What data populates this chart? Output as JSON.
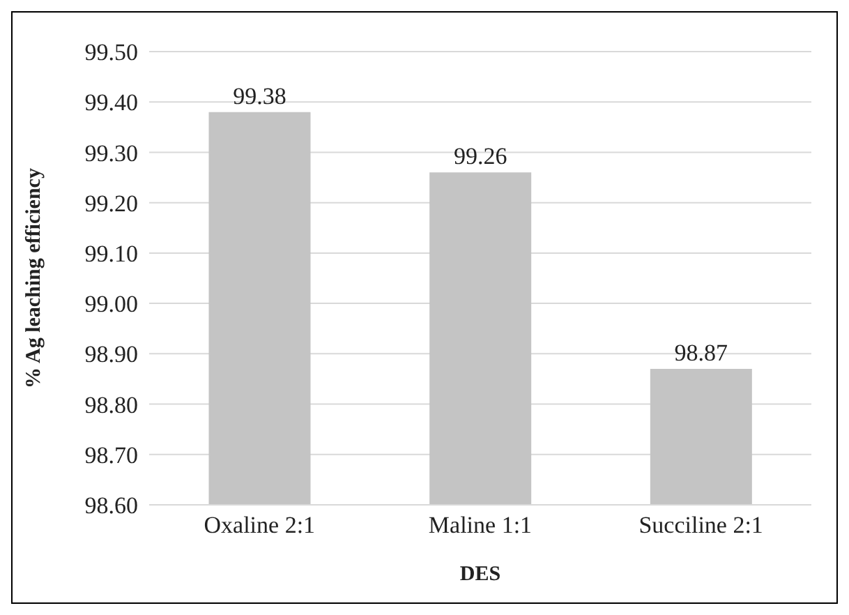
{
  "chart_data": {
    "type": "bar",
    "xlabel": "DES",
    "ylabel": "% Ag leaching efficiency",
    "categories": [
      "Oxaline 2:1",
      "Maline 1:1",
      "Succiline 2:1"
    ],
    "values": [
      99.38,
      99.26,
      98.87
    ],
    "color": "#c4c4c4",
    "ylim": [
      98.6,
      99.5
    ],
    "yticks": [
      {
        "value": 98.6,
        "label": "98.60"
      },
      {
        "value": 98.7,
        "label": "98.70"
      },
      {
        "value": 98.8,
        "label": "98.80"
      },
      {
        "value": 98.9,
        "label": "98.90"
      },
      {
        "value": 99.0,
        "label": "99.00"
      },
      {
        "value": 99.1,
        "label": "99.10"
      },
      {
        "value": 99.2,
        "label": "99.20"
      },
      {
        "value": 99.3,
        "label": "99.30"
      },
      {
        "value": 99.4,
        "label": "99.40"
      },
      {
        "value": 99.5,
        "label": "99.50"
      }
    ],
    "grid": "y",
    "data_labels": true,
    "legend": false
  }
}
